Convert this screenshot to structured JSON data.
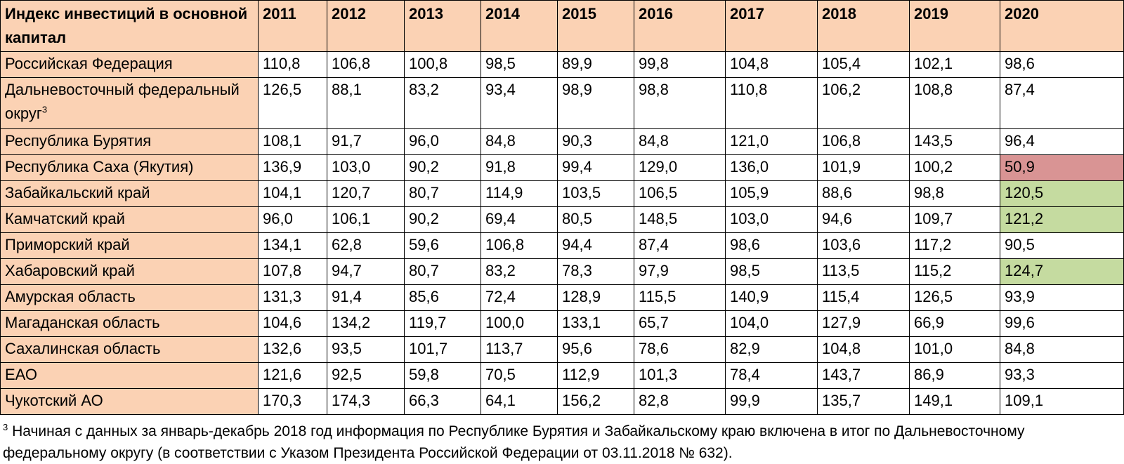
{
  "chart_data": {
    "type": "table",
    "header_label": "Индекс инвестиций в основной капитал",
    "columns": [
      "2011",
      "2012",
      "2013",
      "2014",
      "2015",
      "2016",
      "2017",
      "2018",
      "2019",
      "2020"
    ],
    "rows": [
      {
        "name": "Российская Федерация",
        "values": [
          "110,8",
          "106,8",
          "100,8",
          "98,5",
          "89,9",
          "99,8",
          "104,8",
          "105,4",
          "102,1",
          "98,6"
        ]
      },
      {
        "name": "Дальневосточный федеральный округ",
        "sup": "3",
        "values": [
          "126,5",
          "88,1",
          "83,2",
          "93,4",
          "98,9",
          "98,8",
          "110,8",
          "106,2",
          "108,8",
          "87,4"
        ]
      },
      {
        "name": "Республика Бурятия",
        "values": [
          "108,1",
          "91,7",
          "96,0",
          "84,8",
          "90,3",
          "84,8",
          "121,0",
          "106,8",
          "143,5",
          "96,4"
        ]
      },
      {
        "name": "Республика Саха (Якутия)",
        "values": [
          "136,9",
          "103,0",
          "90,2",
          "91,8",
          "99,4",
          "129,0",
          "136,0",
          "101,9",
          "100,2",
          "50,9"
        ],
        "highlight_last": "red"
      },
      {
        "name": "Забайкальский край",
        "values": [
          "104,1",
          "120,7",
          "80,7",
          "114,9",
          "103,5",
          "106,5",
          "105,9",
          "88,6",
          "98,8",
          "120,5"
        ],
        "highlight_last": "green"
      },
      {
        "name": "Камчатский край",
        "values": [
          "96,0",
          "106,1",
          "90,2",
          "69,4",
          "80,5",
          "148,5",
          "103,0",
          "94,6",
          "109,7",
          "121,2"
        ],
        "highlight_last": "green"
      },
      {
        "name": "Приморский край",
        "values": [
          "134,1",
          "62,8",
          "59,6",
          "106,8",
          "94,4",
          "87,4",
          "98,6",
          "103,6",
          "117,2",
          "90,5"
        ]
      },
      {
        "name": "Хабаровский край",
        "values": [
          "107,8",
          "94,7",
          "80,7",
          "83,2",
          "78,3",
          "97,9",
          "98,5",
          "113,5",
          "115,2",
          "124,7"
        ],
        "highlight_last": "green"
      },
      {
        "name": "Амурская область",
        "values": [
          "131,3",
          "91,4",
          "85,6",
          "72,4",
          "128,9",
          "115,5",
          "140,9",
          "115,4",
          "126,5",
          "93,9"
        ]
      },
      {
        "name": "Магаданская область",
        "values": [
          "104,6",
          "134,2",
          "119,7",
          "100,0",
          "133,1",
          "65,7",
          "104,0",
          "127,9",
          "66,9",
          "99,6"
        ]
      },
      {
        "name": "Сахалинская область",
        "values": [
          "132,6",
          "93,5",
          "101,7",
          "113,7",
          "95,6",
          "78,6",
          "82,9",
          "104,8",
          "101,0",
          "84,8"
        ]
      },
      {
        "name": "ЕАО",
        "values": [
          "121,6",
          "92,5",
          "59,8",
          "70,5",
          "112,9",
          "101,3",
          "78,4",
          "143,7",
          "86,9",
          "93,3"
        ]
      },
      {
        "name": "Чукотский АО",
        "values": [
          "170,3",
          "174,3",
          "66,3",
          "64,1",
          "156,2",
          "82,8",
          "99,9",
          "135,7",
          "149,1",
          "109,1"
        ]
      }
    ]
  },
  "footnote": {
    "marker": "3",
    "text": "Начиная с данных за январь-декабрь 2018 год информация по Республике Бурятия и Забайкальскому краю включена в итог по Дальневосточному федеральному округу (в соответствии с Указом Президента Российской Федерации от 03.11.2018 № 632)."
  },
  "colors": {
    "header_bg": "#fbd2b4",
    "name_col_bg": "#fbd2b4",
    "highlight_red": "#d99494",
    "highlight_green": "#c5dba0",
    "border": "#000000"
  }
}
